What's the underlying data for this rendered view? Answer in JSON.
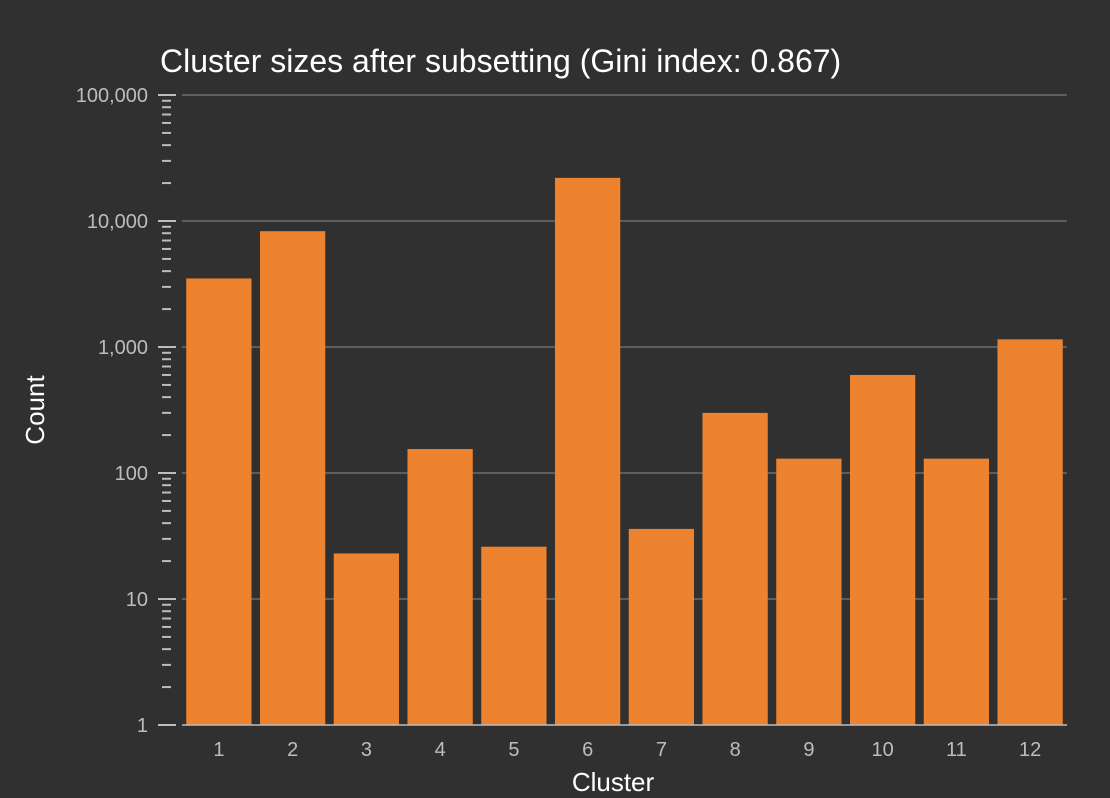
{
  "chart_data": {
    "type": "bar",
    "title": "Cluster sizes after subsetting (Gini index: 0.867)",
    "xlabel": "Cluster",
    "ylabel": "Count",
    "yscale": "log",
    "ylim": [
      1,
      100000
    ],
    "yticks": [
      1,
      10,
      100,
      1000,
      10000,
      100000
    ],
    "ytick_labels": [
      "1",
      "10",
      "100",
      "1,000",
      "10,000",
      "100,000"
    ],
    "categories": [
      "1",
      "2",
      "3",
      "4",
      "5",
      "6",
      "7",
      "8",
      "9",
      "10",
      "11",
      "12"
    ],
    "values": [
      3500,
      8300,
      23,
      155,
      26,
      22000,
      36,
      300,
      130,
      600,
      130,
      1150
    ],
    "bar_color": "#ee832f",
    "background_color": "#303030",
    "grid": true,
    "legend": "none"
  }
}
